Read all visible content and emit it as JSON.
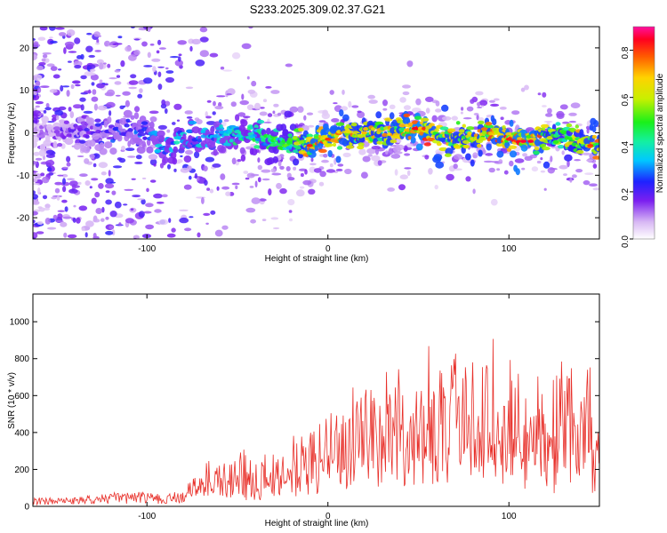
{
  "title": "S233.2025.309.02.37.G21",
  "spectrogram": {
    "type": "heatmap",
    "xlabel": "Height of straight line (km)",
    "ylabel": "Frequency (Hz)",
    "xlim": [
      -163,
      150
    ],
    "ylim": [
      -25,
      25
    ],
    "xticks": [
      -100,
      0,
      100
    ],
    "yticks": [
      -20,
      -10,
      0,
      10,
      20
    ],
    "colorbar": {
      "label": "Normalized spectral amplitude",
      "range": [
        0,
        0.9
      ],
      "ticks": [
        0.0,
        0.2,
        0.4,
        0.6,
        0.8
      ]
    },
    "ridge_center_hz": [
      [
        -140,
        0
      ],
      [
        -120,
        0
      ],
      [
        -100,
        0.5
      ],
      [
        -90,
        -4.5
      ],
      [
        -80,
        -2
      ],
      [
        -60,
        0
      ],
      [
        -40,
        -1
      ],
      [
        -20,
        -2
      ],
      [
        -10,
        -3
      ],
      [
        0,
        -1.5
      ],
      [
        20,
        0
      ],
      [
        40,
        0.5
      ],
      [
        50,
        1
      ],
      [
        60,
        -1
      ],
      [
        70,
        -2
      ],
      [
        80,
        -1
      ],
      [
        90,
        0
      ],
      [
        100,
        -1.5
      ],
      [
        110,
        -2
      ],
      [
        120,
        -1
      ],
      [
        130,
        -1
      ],
      [
        140,
        -2
      ],
      [
        150,
        -3
      ]
    ],
    "peak_amplitude_profile": [
      [
        -163,
        0.15
      ],
      [
        -120,
        0.3
      ],
      [
        -100,
        0.35
      ],
      [
        -85,
        0.45
      ],
      [
        -60,
        0.4
      ],
      [
        -20,
        0.55
      ],
      [
        -10,
        0.8
      ],
      [
        0,
        0.8
      ],
      [
        20,
        0.7
      ],
      [
        40,
        0.75
      ],
      [
        50,
        0.85
      ],
      [
        60,
        0.75
      ],
      [
        80,
        0.7
      ],
      [
        100,
        0.8
      ],
      [
        110,
        0.85
      ],
      [
        130,
        0.6
      ],
      [
        145,
        0.75
      ]
    ]
  },
  "snr_plot": {
    "type": "line",
    "xlabel": "Height of straight line (km)",
    "ylabel": "SNR (10 * v/v)",
    "xlim": [
      -163,
      150
    ],
    "ylim": [
      0,
      1150
    ],
    "xticks": [
      -100,
      0,
      100
    ],
    "yticks": [
      0,
      200,
      400,
      600,
      800,
      1000
    ],
    "series_color": "#e8302a",
    "envelope": [
      [
        -163,
        35
      ],
      [
        -140,
        35
      ],
      [
        -120,
        55
      ],
      [
        -100,
        60
      ],
      [
        -90,
        45
      ],
      [
        -80,
        70
      ],
      [
        -70,
        150
      ],
      [
        -60,
        170
      ],
      [
        -50,
        190
      ],
      [
        -40,
        150
      ],
      [
        -30,
        170
      ],
      [
        -20,
        260
      ],
      [
        -10,
        300
      ],
      [
        0,
        320
      ],
      [
        10,
        360
      ],
      [
        20,
        420
      ],
      [
        30,
        500
      ],
      [
        40,
        470
      ],
      [
        50,
        460
      ],
      [
        60,
        520
      ],
      [
        70,
        520
      ],
      [
        80,
        540
      ],
      [
        90,
        510
      ],
      [
        100,
        470
      ],
      [
        110,
        470
      ],
      [
        120,
        450
      ],
      [
        130,
        460
      ],
      [
        140,
        470
      ],
      [
        150,
        480
      ]
    ]
  }
}
